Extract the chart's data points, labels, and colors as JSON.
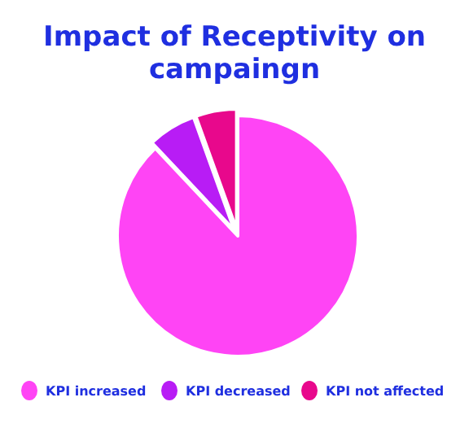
{
  "chart_data": {
    "type": "pie",
    "title": "Impact of Receptivity on campaingn",
    "categories": [
      "KPI increased",
      "KPI decreased",
      "KPI not affected"
    ],
    "values": [
      88,
      6.5,
      5.5
    ],
    "colors": [
      "#ff44f5",
      "#b81cf5",
      "#e8088c"
    ],
    "legend": "bottom"
  }
}
